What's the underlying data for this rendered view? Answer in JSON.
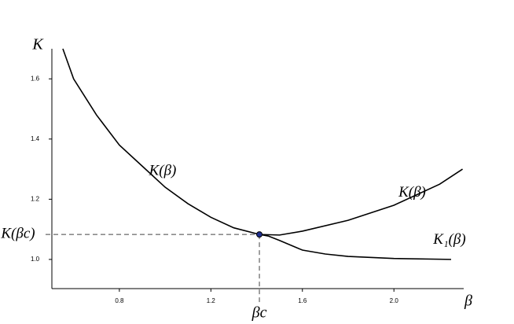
{
  "chart_data": {
    "type": "line",
    "x_label": "β",
    "y_label": "K",
    "xlim": [
      0.505,
      2.305
    ],
    "ylim": [
      0.903,
      1.7
    ],
    "xticks": [
      0.8,
      1.2,
      1.6,
      {
        "value": 2,
        "label": "2.0"
      }
    ],
    "yticks": [
      {
        "value": 1,
        "label": "1.0"
      },
      1.2,
      1.4,
      1.6
    ],
    "series": [
      {
        "name": "K(β)",
        "color": "#000000",
        "x": [
          0.553,
          0.6,
          0.7,
          0.8,
          0.9,
          1.0,
          1.1,
          1.2,
          1.3,
          1.412,
          1.5,
          1.6,
          1.8,
          2.0,
          2.2,
          2.3
        ],
        "values": [
          1.7,
          1.6,
          1.48,
          1.38,
          1.31,
          1.24,
          1.185,
          1.14,
          1.105,
          1.083,
          1.081,
          1.094,
          1.13,
          1.18,
          1.25,
          1.3
        ]
      },
      {
        "name": "K₁(β)",
        "color": "#000000",
        "x": [
          1.412,
          1.45,
          1.5,
          1.6,
          1.7,
          1.8,
          2.0,
          2.25
        ],
        "values": [
          1.083,
          1.078,
          1.063,
          1.031,
          1.018,
          1.01,
          1.003,
          1.0
        ]
      }
    ],
    "annotations": [
      {
        "text": "K(β)",
        "x": 2.08,
        "y": 1.22
      }
    ],
    "critical_point": {
      "x": 1.412,
      "y": 1.083,
      "x_label": "βc",
      "y_label": "K(βc)",
      "color": "#1f2f8f"
    }
  }
}
